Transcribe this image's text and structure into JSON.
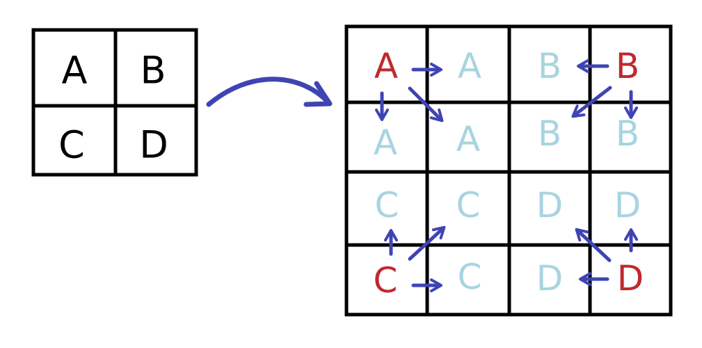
{
  "colors": {
    "grid": "#000000",
    "original": "#000000",
    "source": "#c0282d",
    "copy": "#a8d4e0",
    "arrow": "#3f44b3"
  },
  "small_grid": {
    "rows": [
      [
        "A",
        "B"
      ],
      [
        "C",
        "D"
      ]
    ]
  },
  "big_grid": {
    "rows": [
      [
        "A",
        "A",
        "B",
        "B"
      ],
      [
        "A",
        "A",
        "B",
        "B"
      ],
      [
        "C",
        "C",
        "D",
        "D"
      ],
      [
        "C",
        "C",
        "D",
        "D"
      ]
    ],
    "source_cells": [
      [
        0,
        0
      ],
      [
        0,
        3
      ],
      [
        3,
        0
      ],
      [
        3,
        3
      ]
    ]
  }
}
